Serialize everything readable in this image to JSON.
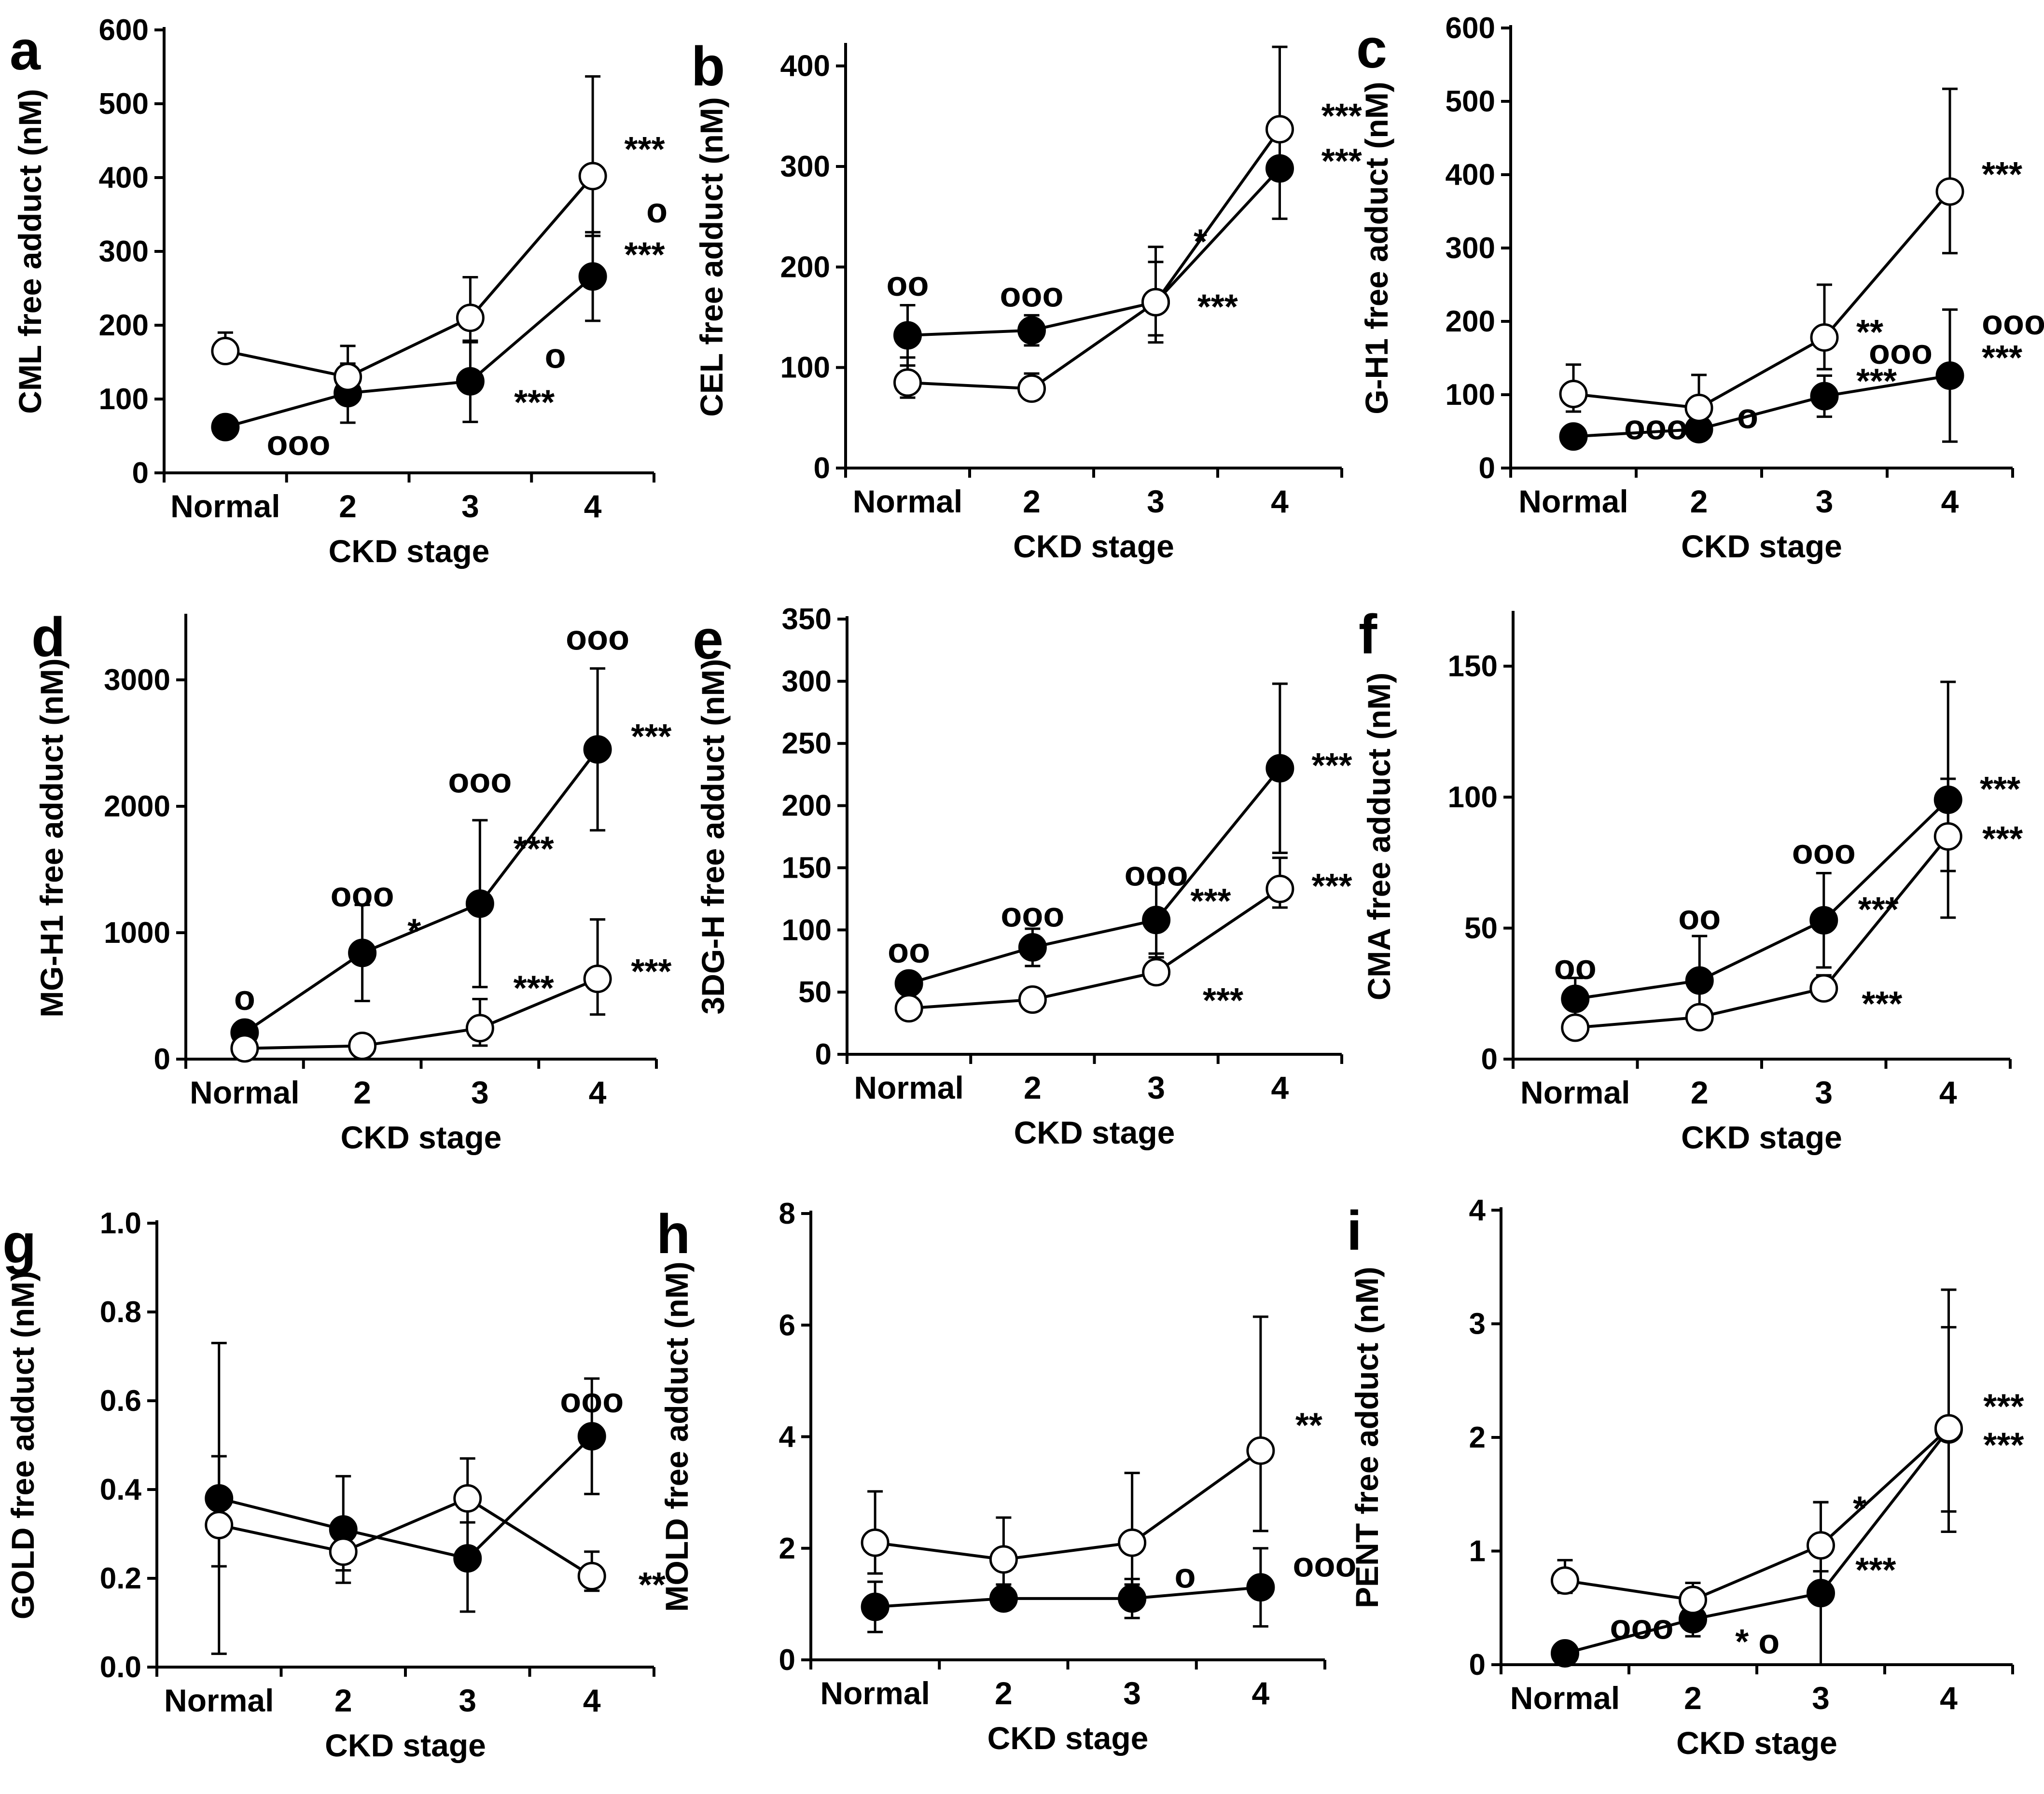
{
  "figure": {
    "xlabel": "CKD stage",
    "categories": [
      "Normal",
      "2",
      "3",
      "4"
    ],
    "series_names": [
      "filled",
      "open"
    ]
  },
  "chart_data": [
    {
      "panel": "a",
      "type": "line",
      "ylabel": "CML free adduct (nM)",
      "ylim": [
        0,
        600
      ],
      "yticks": [
        0,
        100,
        200,
        300,
        400,
        500,
        600
      ],
      "tick_format": "int",
      "categories": [
        "Normal",
        "2",
        "3",
        "4"
      ],
      "xlabel": "CKD stage",
      "series": [
        {
          "name": "filled",
          "marker": "filled",
          "values": [
            62,
            108,
            124,
            266
          ],
          "err": [
            0,
            40,
            55,
            60
          ]
        },
        {
          "name": "open",
          "marker": "open",
          "values": [
            165,
            130,
            210,
            402
          ],
          "err": [
            25,
            42,
            55,
            135
          ]
        }
      ],
      "annotations": [
        {
          "text": "***",
          "cat": 3,
          "y": 438,
          "dx": 0.1
        },
        {
          "text": "o",
          "cat": 3,
          "y": 355,
          "dx": 0.28
        },
        {
          "text": "***",
          "cat": 3,
          "y": 295,
          "dx": 0.1
        },
        {
          "text": "o",
          "cat": 2,
          "y": 158,
          "dx": 0.45
        },
        {
          "text": "***",
          "cat": 2,
          "y": 95,
          "dx": 0.2
        },
        {
          "text": "ooo",
          "cat": 0,
          "y": 40,
          "dx": 0.18
        }
      ]
    },
    {
      "panel": "b",
      "type": "line",
      "ylabel": "CEL free adduct (nM)",
      "ylim": [
        0,
        420
      ],
      "yticks": [
        0,
        100,
        200,
        300,
        400
      ],
      "tick_format": "int",
      "categories": [
        "Normal",
        "2",
        "3",
        "4"
      ],
      "xlabel": "CKD stage",
      "series": [
        {
          "name": "filled",
          "marker": "filled",
          "values": [
            132,
            137,
            165,
            298
          ],
          "err": [
            30,
            15,
            40,
            50
          ]
        },
        {
          "name": "open",
          "marker": "open",
          "values": [
            85,
            79,
            165,
            337
          ],
          "err": [
            25,
            15,
            55,
            82
          ]
        }
      ],
      "annotations": [
        {
          "text": "***",
          "cat": 3,
          "y": 350,
          "dx": 0.18
        },
        {
          "text": "***",
          "cat": 3,
          "y": 305,
          "dx": 0.18
        },
        {
          "text": "*",
          "cat": 2,
          "y": 225,
          "dx": 0.15
        },
        {
          "text": "***",
          "cat": 2,
          "y": 160,
          "dx": 0.18
        },
        {
          "text": "oo",
          "cat": 0,
          "y": 183,
          "dx": 0
        },
        {
          "text": "ooo",
          "cat": 1,
          "y": 172,
          "dx": 0
        }
      ]
    },
    {
      "panel": "c",
      "type": "line",
      "ylabel": "G-H1 free adduct (nM)",
      "ylim": [
        0,
        600
      ],
      "yticks": [
        0,
        100,
        200,
        300,
        400,
        500,
        600
      ],
      "tick_format": "int",
      "categories": [
        "Normal",
        "2",
        "3",
        "4"
      ],
      "xlabel": "CKD stage",
      "series": [
        {
          "name": "filled",
          "marker": "filled",
          "values": [
            43,
            53,
            98,
            126
          ],
          "err": [
            0,
            0,
            28,
            90
          ]
        },
        {
          "name": "open",
          "marker": "open",
          "values": [
            101,
            82,
            178,
            377
          ],
          "err": [
            40,
            45,
            72,
            140
          ]
        }
      ],
      "annotations": [
        {
          "text": "***",
          "cat": 3,
          "y": 400,
          "dx": 0.1
        },
        {
          "text": "**",
          "cat": 2,
          "y": 185,
          "dx": 0.1
        },
        {
          "text": "ooo",
          "cat": 2,
          "y": 158,
          "dx": 0.2
        },
        {
          "text": "***",
          "cat": 2,
          "y": 118,
          "dx": 0.1
        },
        {
          "text": "ooo",
          "cat": 3,
          "y": 198,
          "dx": 0.1
        },
        {
          "text": "***",
          "cat": 3,
          "y": 150,
          "dx": 0.1
        },
        {
          "text": "ooo",
          "cat": 0,
          "y": 55,
          "dx": 0.25
        },
        {
          "text": "o",
          "cat": 1,
          "y": 70,
          "dx": 0.15
        }
      ]
    },
    {
      "panel": "d",
      "type": "line",
      "ylabel": "MG-H1 free adduct (nM)",
      "ylim": [
        0,
        3500
      ],
      "yticks": [
        0,
        1000,
        2000,
        3000
      ],
      "tick_format": "int",
      "categories": [
        "Normal",
        "2",
        "3",
        "4"
      ],
      "xlabel": "CKD stage",
      "series": [
        {
          "name": "filled",
          "marker": "filled",
          "values": [
            210,
            840,
            1230,
            2450
          ],
          "err": [
            50,
            380,
            660,
            640
          ]
        },
        {
          "name": "open",
          "marker": "open",
          "values": [
            85,
            105,
            245,
            635
          ],
          "err": [
            30,
            30,
            230,
            470
          ]
        }
      ],
      "annotations": [
        {
          "text": "***",
          "cat": 3,
          "y": 2550,
          "dx": 0.12
        },
        {
          "text": "ooo",
          "cat": 3,
          "y": 3330,
          "dx": 0
        },
        {
          "text": "ooo",
          "cat": 2,
          "y": 2200,
          "dx": 0
        },
        {
          "text": "***",
          "cat": 2,
          "y": 1660,
          "dx": 0.12
        },
        {
          "text": "ooo",
          "cat": 1,
          "y": 1300,
          "dx": 0
        },
        {
          "text": "*",
          "cat": 1,
          "y": 1010,
          "dx": 0.22
        },
        {
          "text": "o",
          "cat": 0,
          "y": 480,
          "dx": 0
        },
        {
          "text": "***",
          "cat": 2,
          "y": 560,
          "dx": 0.12
        },
        {
          "text": "***",
          "cat": 3,
          "y": 690,
          "dx": 0.12
        }
      ]
    },
    {
      "panel": "e",
      "type": "line",
      "ylabel": "3DG-H free adduct (nM)",
      "ylim": [
        0,
        350
      ],
      "yticks": [
        0,
        50,
        100,
        150,
        200,
        250,
        300,
        350
      ],
      "tick_format": "int",
      "categories": [
        "Normal",
        "2",
        "3",
        "4"
      ],
      "xlabel": "CKD stage",
      "series": [
        {
          "name": "filled",
          "marker": "filled",
          "values": [
            57,
            86,
            108,
            230
          ],
          "err": [
            0,
            15,
            30,
            68
          ]
        },
        {
          "name": "open",
          "marker": "open",
          "values": [
            37,
            44,
            66,
            133
          ],
          "err": [
            0,
            0,
            15,
            25
          ]
        }
      ],
      "annotations": [
        {
          "text": "***",
          "cat": 3,
          "y": 232,
          "dx": 0.1
        },
        {
          "text": "ooo",
          "cat": 2,
          "y": 145,
          "dx": 0
        },
        {
          "text": "***",
          "cat": 2,
          "y": 123,
          "dx": 0.12
        },
        {
          "text": "***",
          "cat": 3,
          "y": 135,
          "dx": 0.1
        },
        {
          "text": "***",
          "cat": 2,
          "y": 43,
          "dx": 0.22
        },
        {
          "text": "oo",
          "cat": 0,
          "y": 83,
          "dx": 0
        },
        {
          "text": "ooo",
          "cat": 1,
          "y": 112,
          "dx": 0
        }
      ]
    },
    {
      "panel": "f",
      "type": "line",
      "ylabel": "CMA free adduct (nM)",
      "ylim": [
        0,
        170
      ],
      "yticks": [
        0,
        50,
        100,
        150
      ],
      "tick_format": "int",
      "categories": [
        "Normal",
        "2",
        "3",
        "4"
      ],
      "xlabel": "CKD stage",
      "series": [
        {
          "name": "filled",
          "marker": "filled",
          "values": [
            23,
            30,
            53,
            99
          ],
          "err": [
            8,
            17,
            18,
            45
          ]
        },
        {
          "name": "open",
          "marker": "open",
          "values": [
            12,
            16,
            27,
            85
          ],
          "err": [
            0,
            0,
            5,
            22
          ]
        }
      ],
      "annotations": [
        {
          "text": "***",
          "cat": 3,
          "y": 103,
          "dx": 0.1
        },
        {
          "text": "***",
          "cat": 3,
          "y": 84,
          "dx": 0.12
        },
        {
          "text": "ooo",
          "cat": 2,
          "y": 79,
          "dx": 0
        },
        {
          "text": "***",
          "cat": 2,
          "y": 57,
          "dx": 0.12
        },
        {
          "text": "***",
          "cat": 2,
          "y": 21,
          "dx": 0.15
        },
        {
          "text": "oo",
          "cat": 0,
          "y": 35,
          "dx": 0
        },
        {
          "text": "oo",
          "cat": 1,
          "y": 54,
          "dx": 0
        }
      ]
    },
    {
      "panel": "g",
      "type": "line",
      "ylabel": "GOLD free adduct (nM)",
      "ylim": [
        0,
        1.0
      ],
      "yticks": [
        0,
        0.2,
        0.4,
        0.6,
        0.8,
        1.0
      ],
      "tick_format": "1dp",
      "categories": [
        "Normal",
        "2",
        "3",
        "4"
      ],
      "xlabel": "CKD stage",
      "series": [
        {
          "name": "filled",
          "marker": "filled",
          "values": [
            0.38,
            0.31,
            0.245,
            0.52
          ],
          "err": [
            0.35,
            0.12,
            0.12,
            0.13
          ]
        },
        {
          "name": "open",
          "marker": "open",
          "values": [
            0.32,
            0.26,
            0.38,
            0.205
          ],
          "err": [
            0.155,
            0.07,
            0.09,
            0.055
          ]
        }
      ],
      "annotations": [
        {
          "text": "ooo",
          "cat": 3,
          "y": 0.6,
          "dx": 0
        },
        {
          "text": "**",
          "cat": 3,
          "y": 0.185,
          "dx": 0.22
        }
      ]
    },
    {
      "panel": "h",
      "type": "line",
      "ylabel": "MOLD free adduct (nM)",
      "ylim": [
        0,
        8
      ],
      "yticks": [
        0,
        2,
        4,
        6,
        8
      ],
      "tick_format": "int",
      "categories": [
        "Normal",
        "2",
        "3",
        "4"
      ],
      "xlabel": "CKD stage",
      "series": [
        {
          "name": "filled",
          "marker": "filled",
          "values": [
            0.95,
            1.1,
            1.1,
            1.3
          ],
          "err": [
            0.45,
            0,
            0.35,
            0.7
          ]
        },
        {
          "name": "open",
          "marker": "open",
          "values": [
            2.1,
            1.8,
            2.1,
            3.75
          ],
          "err": [
            0.92,
            0.75,
            1.25,
            2.4
          ]
        }
      ],
      "annotations": [
        {
          "text": "**",
          "cat": 3,
          "y": 4.2,
          "dx": 0.12
        },
        {
          "text": "o",
          "cat": 2,
          "y": 1.5,
          "dx": 0.18
        },
        {
          "text": "ooo",
          "cat": 3,
          "y": 1.7,
          "dx": 0.1
        }
      ]
    },
    {
      "panel": "i",
      "type": "line",
      "ylabel": "PENT free adduct (nM)",
      "ylim": [
        0,
        4
      ],
      "yticks": [
        0,
        1,
        2,
        3,
        4
      ],
      "tick_format": "int",
      "categories": [
        "Normal",
        "2",
        "3",
        "4"
      ],
      "xlabel": "CKD stage",
      "series": [
        {
          "name": "filled",
          "marker": "filled",
          "values": [
            0.1,
            0.4,
            0.63,
            2.07
          ],
          "err": [
            0,
            0.15,
            0.8,
            0.9
          ]
        },
        {
          "name": "open",
          "marker": "open",
          "values": [
            0.74,
            0.57,
            1.05,
            2.08
          ],
          "err": [
            0.18,
            0.15,
            0.38,
            1.22
          ]
        }
      ],
      "annotations": [
        {
          "text": "***",
          "cat": 3,
          "y": 2.27,
          "dx": 0.12
        },
        {
          "text": "***",
          "cat": 3,
          "y": 1.93,
          "dx": 0.12
        },
        {
          "text": "*",
          "cat": 2,
          "y": 1.37,
          "dx": 0.1
        },
        {
          "text": "***",
          "cat": 2,
          "y": 0.83,
          "dx": 0.12
        },
        {
          "text": "ooo",
          "cat": 0,
          "y": 0.33,
          "dx": 0.2
        },
        {
          "text": "* o",
          "cat": 1,
          "y": 0.2,
          "dx": 0.18
        }
      ]
    }
  ]
}
